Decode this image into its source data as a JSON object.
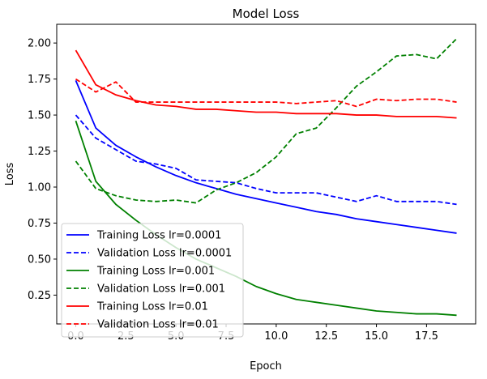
{
  "chart_data": {
    "type": "line",
    "title": "Model Loss",
    "xlabel": "Epoch",
    "ylabel": "Loss",
    "xlim": [
      -0.95,
      19.95
    ],
    "ylim": [
      0.05,
      2.13
    ],
    "xticks": [
      0.0,
      2.5,
      5.0,
      7.5,
      10.0,
      12.5,
      15.0,
      17.5
    ],
    "xtick_labels": [
      "0.0",
      "2.5",
      "5.0",
      "7.5",
      "10.0",
      "12.5",
      "15.0",
      "17.5"
    ],
    "yticks": [
      0.25,
      0.5,
      0.75,
      1.0,
      1.25,
      1.5,
      1.75,
      2.0
    ],
    "ytick_labels": [
      "0.25",
      "0.50",
      "0.75",
      "1.00",
      "1.25",
      "1.50",
      "1.75",
      "2.00"
    ],
    "grid": false,
    "legend_position": "lower-left",
    "x": [
      0,
      1,
      2,
      3,
      4,
      5,
      6,
      7,
      8,
      9,
      10,
      11,
      12,
      13,
      14,
      15,
      16,
      17,
      18,
      19
    ],
    "series": [
      {
        "name": "Training Loss lr=0.0001",
        "color": "#0000ff",
        "dash": "solid",
        "values": [
          1.74,
          1.41,
          1.29,
          1.21,
          1.14,
          1.08,
          1.03,
          0.99,
          0.95,
          0.92,
          0.89,
          0.86,
          0.83,
          0.81,
          0.78,
          0.76,
          0.74,
          0.72,
          0.7,
          0.68
        ]
      },
      {
        "name": "Validation Loss lr=0.0001",
        "color": "#0000ff",
        "dash": "dashed",
        "values": [
          1.5,
          1.34,
          1.26,
          1.18,
          1.16,
          1.13,
          1.05,
          1.04,
          1.03,
          0.99,
          0.96,
          0.96,
          0.96,
          0.93,
          0.9,
          0.94,
          0.9,
          0.9,
          0.9,
          0.88
        ]
      },
      {
        "name": "Training Loss lr=0.001",
        "color": "#008000",
        "dash": "solid",
        "values": [
          1.46,
          1.04,
          0.88,
          0.77,
          0.67,
          0.58,
          0.5,
          0.44,
          0.38,
          0.31,
          0.26,
          0.22,
          0.2,
          0.18,
          0.16,
          0.14,
          0.13,
          0.12,
          0.12,
          0.11
        ]
      },
      {
        "name": "Validation Loss lr=0.001",
        "color": "#008000",
        "dash": "dashed",
        "values": [
          1.18,
          0.99,
          0.94,
          0.91,
          0.9,
          0.91,
          0.89,
          0.98,
          1.03,
          1.1,
          1.21,
          1.37,
          1.41,
          1.55,
          1.7,
          1.8,
          1.91,
          1.92,
          1.89,
          2.03
        ]
      },
      {
        "name": "Training Loss lr=0.01",
        "color": "#ff0000",
        "dash": "solid",
        "values": [
          1.95,
          1.71,
          1.64,
          1.6,
          1.57,
          1.56,
          1.54,
          1.54,
          1.53,
          1.52,
          1.52,
          1.51,
          1.51,
          1.51,
          1.5,
          1.5,
          1.49,
          1.49,
          1.49,
          1.48
        ]
      },
      {
        "name": "Validation Loss lr=0.01",
        "color": "#ff0000",
        "dash": "dashed",
        "values": [
          1.75,
          1.66,
          1.73,
          1.59,
          1.59,
          1.59,
          1.59,
          1.59,
          1.59,
          1.59,
          1.59,
          1.58,
          1.59,
          1.6,
          1.56,
          1.61,
          1.6,
          1.61,
          1.61,
          1.59
        ]
      }
    ]
  }
}
